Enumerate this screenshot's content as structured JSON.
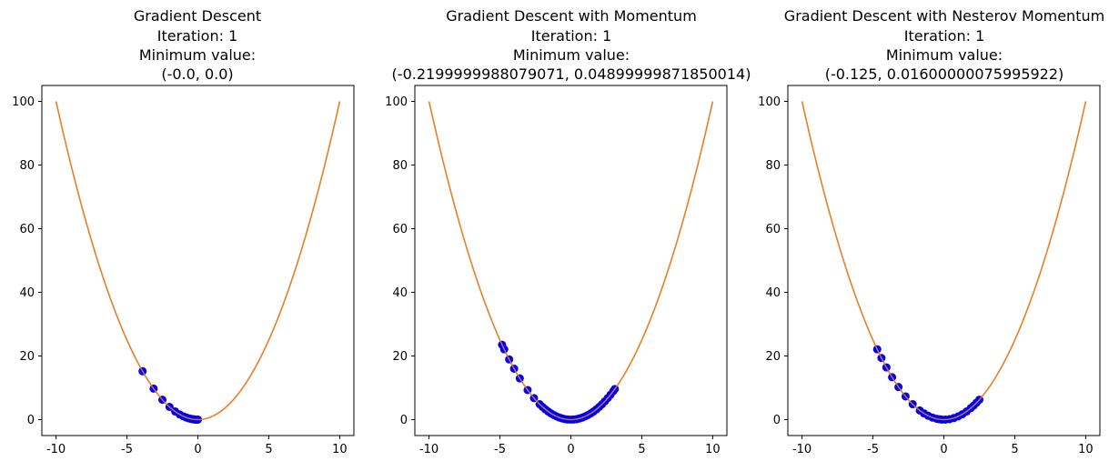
{
  "chart_data": [
    {
      "type": "scatter",
      "title_lines": [
        "Gradient Descent",
        "Iteration: 1",
        "Minimum value:",
        "(-0.0, 0.0)"
      ],
      "xlim": [
        -11,
        11
      ],
      "ylim": [
        -5,
        105
      ],
      "xticks": [
        -10,
        -5,
        0,
        5,
        10
      ],
      "yticks": [
        0,
        20,
        40,
        60,
        80,
        100
      ],
      "curve": {
        "function": "x^2",
        "x_range": [
          -10,
          10
        ],
        "color": "#e6832c"
      },
      "points": {
        "color": "#0000ee",
        "x": [
          -3.9,
          -3.12,
          -2.5,
          -2.0,
          -1.6,
          -1.28,
          -1.02,
          -0.82,
          -0.66,
          -0.52,
          -0.42,
          -0.34,
          -0.27,
          -0.21,
          -0.17,
          -0.13,
          -0.1,
          -0.08,
          -0.06,
          -0.04,
          -0.02,
          0.0
        ]
      }
    },
    {
      "type": "scatter",
      "title_lines": [
        "Gradient Descent with Momentum",
        "Iteration: 1",
        "Minimum value:",
        "(-0.2199999988079071, 0.04899999871850014)"
      ],
      "xlim": [
        -11,
        11
      ],
      "ylim": [
        -5,
        105
      ],
      "xticks": [
        -10,
        -5,
        0,
        5,
        10
      ],
      "yticks": [
        0,
        20,
        40,
        60,
        80,
        100
      ],
      "curve": {
        "function": "x^2",
        "x_range": [
          -10,
          10
        ],
        "color": "#e6832c"
      },
      "points": {
        "color": "#0000ee",
        "x": [
          -4.85,
          -4.7,
          -4.35,
          -4.0,
          -3.6,
          -3.05,
          -2.6,
          -2.2,
          -2.0,
          -1.8,
          -1.6,
          -1.4,
          -1.2,
          -1.0,
          -0.8,
          -0.6,
          -0.4,
          -0.22,
          0.0,
          0.2,
          0.4,
          0.6,
          0.8,
          1.0,
          1.2,
          1.4,
          1.6,
          1.8,
          2.0,
          2.2,
          2.4,
          2.6,
          2.8,
          3.0,
          3.1
        ]
      }
    },
    {
      "type": "scatter",
      "title_lines": [
        "Gradient Descent with Nesterov Momentum",
        "Iteration: 1",
        "Minimum value:",
        "(-0.125, 0.01600000075995922)"
      ],
      "xlim": [
        -11,
        11
      ],
      "ylim": [
        -5,
        105
      ],
      "xticks": [
        -10,
        -5,
        0,
        5,
        10
      ],
      "yticks": [
        0,
        20,
        40,
        60,
        80,
        100
      ],
      "curve": {
        "function": "x^2",
        "x_range": [
          -10,
          10
        ],
        "color": "#e6832c"
      },
      "points": {
        "color": "#0000ee",
        "x": [
          -4.7,
          -4.4,
          -4.05,
          -3.65,
          -3.2,
          -2.7,
          -2.2,
          -1.7,
          -1.4,
          -1.1,
          -0.8,
          -0.5,
          -0.3,
          -0.125,
          0.1,
          0.4,
          0.7,
          1.0,
          1.3,
          1.6,
          1.9,
          2.1,
          2.3,
          2.5
        ]
      }
    }
  ]
}
